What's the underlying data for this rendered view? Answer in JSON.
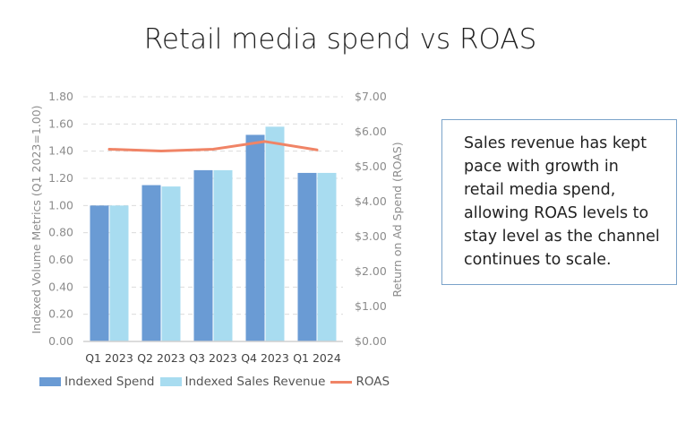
{
  "title": "Retail media spend vs ROAS",
  "note": "Sales revenue has kept pace with growth in retail media spend, allowing ROAS levels to stay level as the channel continues to scale.",
  "colors": {
    "indexed_spend": "#6a9bd4",
    "indexed_sales_revenue": "#a8dcf0",
    "roas": "#f08466"
  },
  "chart_data": {
    "type": "bar",
    "title": "Retail media spend vs ROAS",
    "categories": [
      "Q1 2023",
      "Q2 2023",
      "Q3 2023",
      "Q4 2023",
      "Q1 2024"
    ],
    "series": [
      {
        "name": "Indexed Spend",
        "type": "bar",
        "axis": "left",
        "values": [
          1.0,
          1.15,
          1.26,
          1.52,
          1.24
        ]
      },
      {
        "name": "Indexed Sales Revenue",
        "type": "bar",
        "axis": "left",
        "values": [
          1.0,
          1.14,
          1.26,
          1.58,
          1.24
        ]
      },
      {
        "name": "ROAS",
        "type": "line",
        "axis": "right",
        "values": [
          5.5,
          5.45,
          5.5,
          5.72,
          5.48
        ]
      }
    ],
    "ylabel": "Indexed Volume Metrics (Q1 2023=1.00)",
    "ylabel_right": "Return on Ad Spend (ROAS)",
    "ylim": [
      0,
      1.8
    ],
    "ylim_right": [
      0,
      7
    ],
    "yticks": [
      "0.00",
      "0.20",
      "0.40",
      "0.60",
      "0.80",
      "1.00",
      "1.20",
      "1.40",
      "1.60",
      "1.80"
    ],
    "yticks_right": [
      "$0.00",
      "$1.00",
      "$2.00",
      "$3.00",
      "$4.00",
      "$5.00",
      "$6.00",
      "$7.00"
    ],
    "grid": true,
    "legend_position": "bottom"
  }
}
